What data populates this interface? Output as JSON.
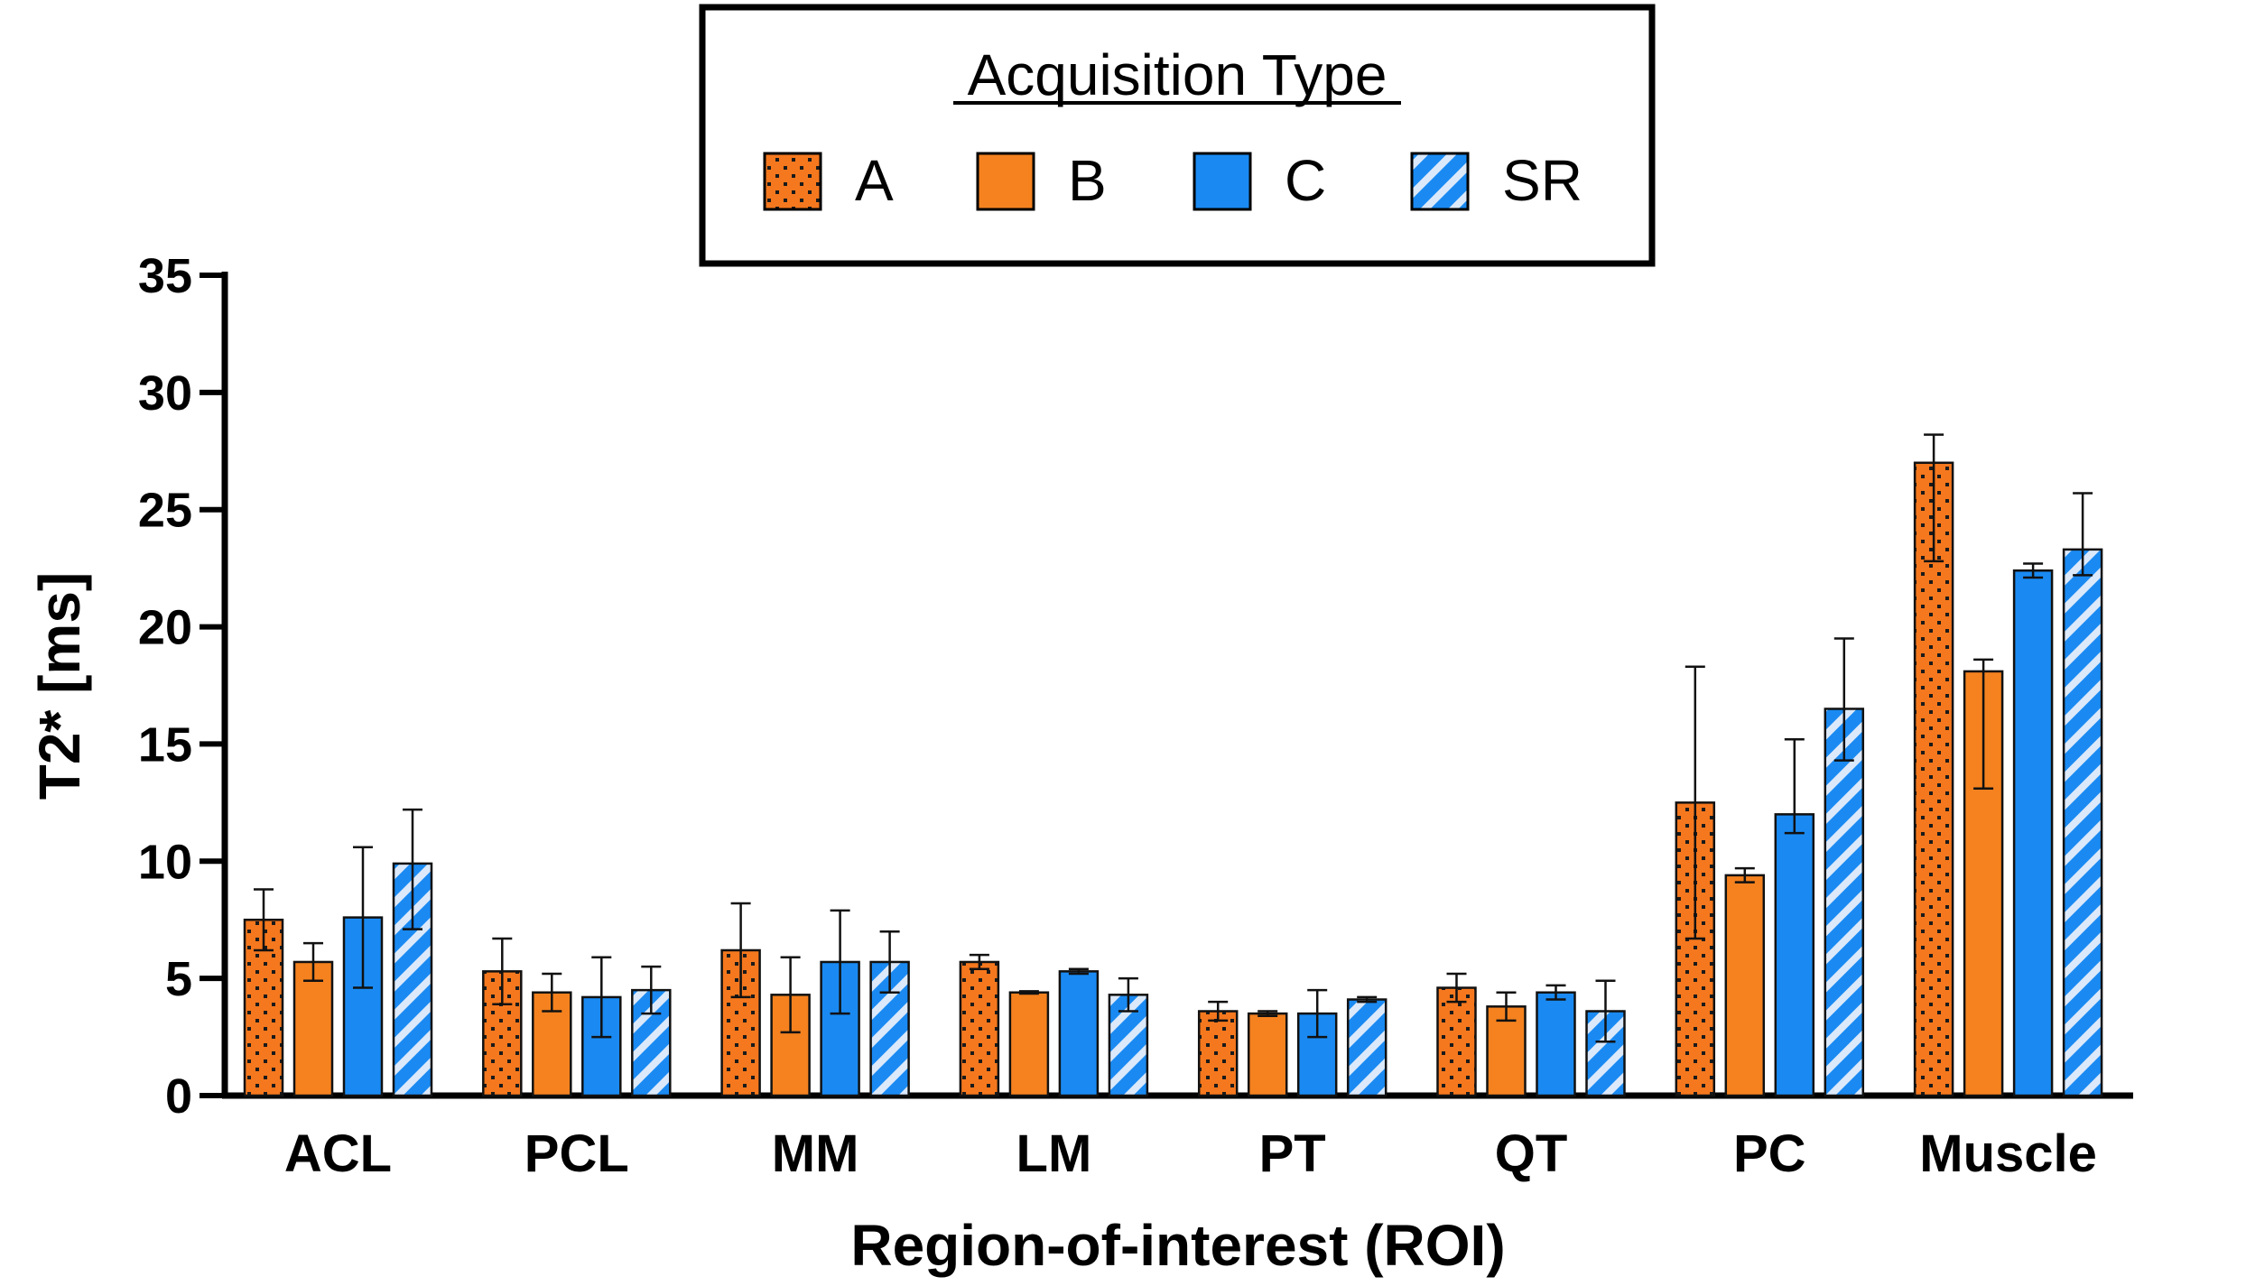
{
  "chart_data": {
    "type": "bar",
    "title": "",
    "xlabel": "Region-of-interest (ROI)",
    "ylabel": "T2* [ms]",
    "ylim": [
      0,
      35
    ],
    "yticks": [
      0,
      5,
      10,
      15,
      20,
      25,
      30,
      35
    ],
    "categories": [
      "ACL",
      "PCL",
      "MM",
      "LM",
      "PT",
      "QT",
      "PC",
      "Muscle"
    ],
    "legend": {
      "title": "Acquisition Type",
      "position": "top-center"
    },
    "series": [
      {
        "name": "A",
        "pattern": "dots",
        "color": "#F5781E",
        "values": [
          7.5,
          5.3,
          6.2,
          5.7,
          3.6,
          4.6,
          12.5,
          27.0
        ],
        "err_lo": [
          1.3,
          1.4,
          2.0,
          0.3,
          0.4,
          0.6,
          5.8,
          4.2
        ],
        "err_hi": [
          1.3,
          1.4,
          2.0,
          0.3,
          0.4,
          0.6,
          5.8,
          1.2
        ]
      },
      {
        "name": "B",
        "pattern": "solid",
        "color": "#F5821F",
        "values": [
          5.7,
          4.4,
          4.3,
          4.4,
          3.5,
          3.8,
          9.4,
          18.1
        ],
        "err_lo": [
          0.8,
          0.8,
          1.6,
          0.05,
          0.1,
          0.6,
          0.3,
          5.0
        ],
        "err_hi": [
          0.8,
          0.8,
          1.6,
          0.05,
          0.1,
          0.6,
          0.3,
          0.5
        ]
      },
      {
        "name": "C",
        "pattern": "solid",
        "color": "#1A8AF2",
        "values": [
          7.6,
          4.2,
          5.7,
          5.3,
          3.5,
          4.4,
          12.0,
          22.4
        ],
        "err_lo": [
          3.0,
          1.7,
          2.2,
          0.1,
          1.0,
          0.3,
          0.8,
          0.3
        ],
        "err_hi": [
          3.0,
          1.7,
          2.2,
          0.1,
          1.0,
          0.3,
          3.2,
          0.3
        ]
      },
      {
        "name": "SR",
        "pattern": "stripes",
        "color": "#1A8AF2",
        "values": [
          9.9,
          4.5,
          5.7,
          4.3,
          4.1,
          3.6,
          16.5,
          23.3
        ],
        "err_lo": [
          2.8,
          1.0,
          1.3,
          0.7,
          0.1,
          1.3,
          2.2,
          1.1
        ],
        "err_hi": [
          2.3,
          1.0,
          1.3,
          0.7,
          0.1,
          1.3,
          3.0,
          2.4
        ]
      }
    ]
  }
}
